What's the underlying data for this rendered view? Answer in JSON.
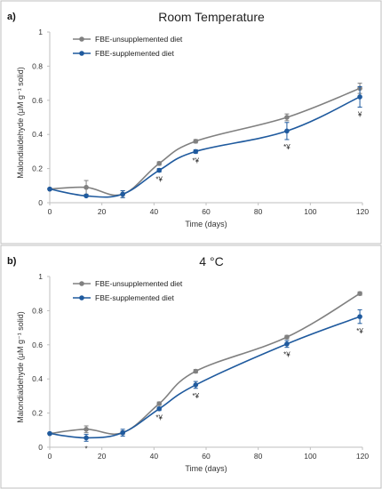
{
  "chart_data": [
    {
      "panel_label": "a)",
      "type": "line",
      "title": "Room Temperature",
      "xlabel": "Time (days)",
      "ylabel": "Malondialdehyde (μM g⁻¹ solid)",
      "xlim": [
        0,
        120
      ],
      "ylim": [
        0,
        1
      ],
      "xticks": [
        "0",
        "20",
        "40",
        "60",
        "80",
        "100",
        "120"
      ],
      "yticks": [
        "0",
        "0.2",
        "0.4",
        "0.6",
        "0.8",
        "1"
      ],
      "legend_position": "top-left",
      "grid": false,
      "x": [
        0,
        14,
        28,
        42,
        56,
        91,
        119
      ],
      "series": [
        {
          "name": "FBE-unsupplemented diet",
          "color": "#808080",
          "values": [
            0.08,
            0.09,
            0.05,
            0.23,
            0.36,
            0.5,
            0.67
          ],
          "errors": [
            0.0,
            0.04,
            0.02,
            0.01,
            0.01,
            0.02,
            0.03
          ]
        },
        {
          "name": "FBE-supplemented diet",
          "color": "#1f5a9e",
          "values": [
            0.08,
            0.04,
            0.05,
            0.19,
            0.3,
            0.42,
            0.62
          ],
          "errors": [
            0.0,
            0.0,
            0.02,
            0.01,
            0.01,
            0.05,
            0.06
          ]
        }
      ],
      "annotations": [
        {
          "x": 42,
          "text": "*¥"
        },
        {
          "x": 56,
          "text": "*¥"
        },
        {
          "x": 91,
          "text": "*¥"
        },
        {
          "x": 119,
          "text": "¥"
        }
      ]
    },
    {
      "panel_label": "b)",
      "type": "line",
      "title": "4 °C",
      "xlabel": "Time (days)",
      "ylabel": "Malondialdehyde (μM g⁻¹ solid)",
      "xlim": [
        0,
        120
      ],
      "ylim": [
        0,
        1
      ],
      "xticks": [
        "0",
        "20",
        "40",
        "60",
        "80",
        "100",
        "120"
      ],
      "yticks": [
        "0",
        "0.2",
        "0.4",
        "0.6",
        "0.8",
        "1"
      ],
      "legend_position": "top-left",
      "grid": false,
      "x": [
        0,
        14,
        28,
        42,
        56,
        91,
        119
      ],
      "series": [
        {
          "name": "FBE-unsupplemented diet",
          "color": "#808080",
          "values": [
            0.08,
            0.105,
            0.085,
            0.255,
            0.445,
            0.645,
            0.9
          ],
          "errors": [
            0.0,
            0.02,
            0.01,
            0.01,
            0.01,
            0.01,
            0.01
          ]
        },
        {
          "name": "FBE-supplemented diet",
          "color": "#1f5a9e",
          "values": [
            0.08,
            0.055,
            0.085,
            0.225,
            0.365,
            0.605,
            0.765
          ],
          "errors": [
            0.0,
            0.02,
            0.02,
            0.01,
            0.02,
            0.02,
            0.04
          ]
        }
      ],
      "annotations": [
        {
          "x": 14,
          "text": "*"
        },
        {
          "x": 42,
          "text": "*¥"
        },
        {
          "x": 56,
          "text": "*¥"
        },
        {
          "x": 91,
          "text": "*¥"
        },
        {
          "x": 119,
          "text": "*¥"
        }
      ]
    }
  ]
}
